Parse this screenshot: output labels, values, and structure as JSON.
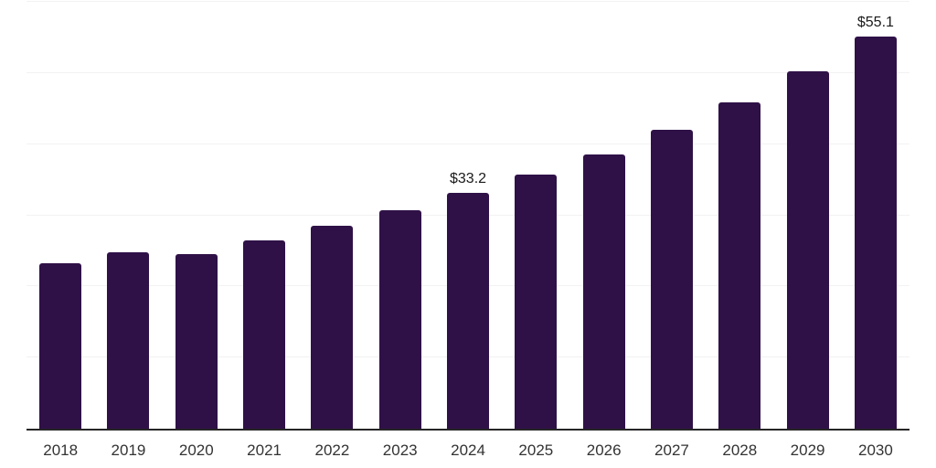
{
  "chart_data": {
    "type": "bar",
    "title": "",
    "categories": [
      "2018",
      "2019",
      "2020",
      "2021",
      "2022",
      "2023",
      "2024",
      "2025",
      "2026",
      "2027",
      "2028",
      "2029",
      "2030"
    ],
    "values": [
      23.2,
      24.8,
      24.5,
      26.5,
      28.5,
      30.7,
      33.2,
      35.7,
      38.6,
      42.0,
      45.9,
      50.3,
      55.1
    ],
    "data_labels": {
      "2024": "$33.2",
      "2030": "$55.1"
    },
    "xlabel": "",
    "ylabel": "",
    "ylim": [
      0,
      60
    ],
    "gridline_step": 10,
    "grid": true,
    "legend_position": "none",
    "colors": {
      "bar": "#2f1147",
      "axis_line": "#262626",
      "gridline": "#f2f2f2",
      "data_label": "#1a1a1a",
      "tick_label": "#333333",
      "background": "#ffffff"
    }
  }
}
